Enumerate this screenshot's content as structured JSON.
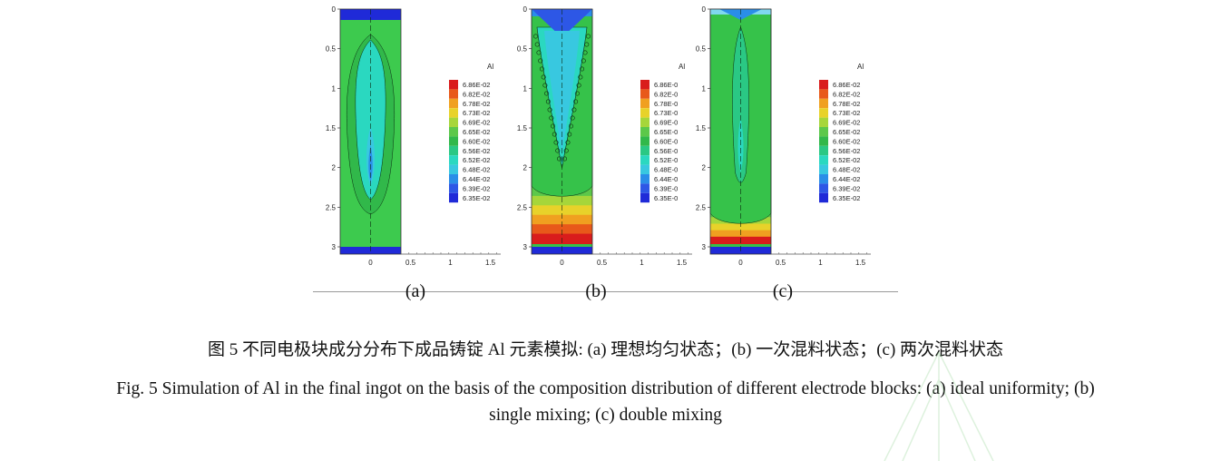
{
  "figure": {
    "legend_title": "Al",
    "y_ticks": [
      "0",
      "0.5",
      "1",
      "1.5",
      "2",
      "2.5",
      "3"
    ],
    "x_ticks": [
      "0",
      "0.5",
      "1",
      "1.5"
    ],
    "legend_colors": [
      "#d91c1c",
      "#e8591a",
      "#f0a020",
      "#e8d22a",
      "#a6d63a",
      "#5cc84a",
      "#31b84a",
      "#2ac884",
      "#2ad8c0",
      "#38c8e0",
      "#2a8ee8",
      "#2d57e6",
      "#1f2ad8"
    ],
    "panels": [
      {
        "label": "(a)",
        "legend_values": [
          "6.86E-02",
          "6.82E-02",
          "6.78E-02",
          "6.73E-02",
          "6.69E-02",
          "6.65E-02",
          "6.60E-02",
          "6.56E-02",
          "6.52E-02",
          "6.48E-02",
          "6.44E-02",
          "6.39E-02",
          "6.35E-02"
        ]
      },
      {
        "label": "(b)",
        "legend_values": [
          "6.86E-0",
          "6.82E-0",
          "6.78E-0",
          "6.73E-0",
          "6.69E-0",
          "6.65E-0",
          "6.60E-0",
          "6.56E-0",
          "6.52E-0",
          "6.48E-0",
          "6.44E-0",
          "6.39E-0",
          "6.35E-0"
        ]
      },
      {
        "label": "(c)",
        "legend_values": [
          "6.86E-02",
          "6.82E-02",
          "6.78E-02",
          "6.73E-02",
          "6.69E-02",
          "6.65E-02",
          "6.60E-02",
          "6.56E-02",
          "6.52E-02",
          "6.48E-02",
          "6.44E-02",
          "6.39E-02",
          "6.35E-02"
        ]
      }
    ]
  },
  "caption": {
    "chinese": "图 5  不同电极块成分分布下成品铸锭 Al 元素模拟: (a)  理想均匀状态；(b)  一次混料状态；(c)  两次混料状态",
    "english_line1": "Fig. 5 Simulation of Al in the final ingot on the basis of the composition distribution of different electrode blocks: (a) ideal uniformity; (b)",
    "english_line2": "single mixing; (c) double mixing"
  }
}
